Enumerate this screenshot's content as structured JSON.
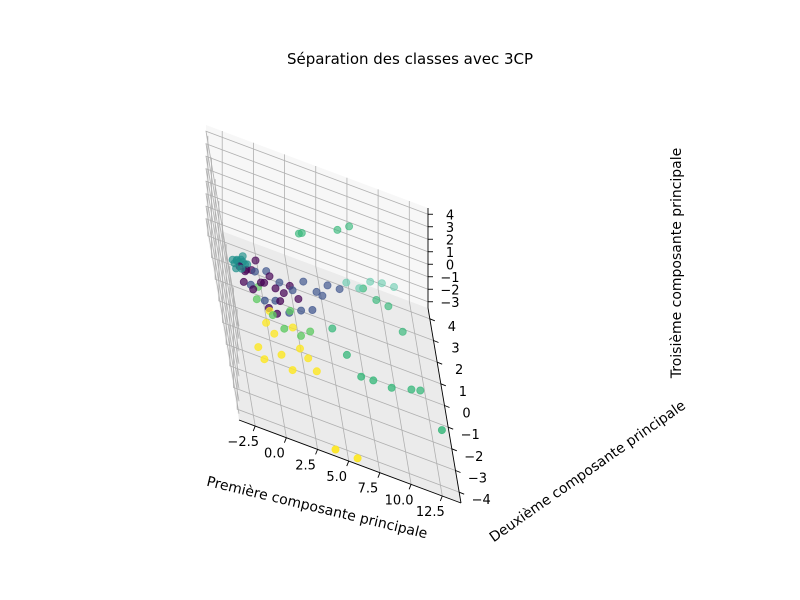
{
  "chart_data": {
    "type": "scatter",
    "projection": "3d",
    "title": "Séparation des classes avec 3CP",
    "xlabel": "Première composante principale",
    "ylabel": "Deuxième composante principale",
    "zlabel": "Troisième composante principale",
    "xlim": [
      -3.8,
      14.0
    ],
    "ylim": [
      -4.5,
      4.5
    ],
    "zlim": [
      -3.5,
      4.5
    ],
    "xticks": [
      -2.5,
      0.0,
      2.5,
      5.0,
      7.5,
      10.0,
      12.5
    ],
    "yticks": [
      -4,
      -3,
      -2,
      -1,
      0,
      1,
      2,
      3,
      4
    ],
    "zticks": [
      -3,
      -2,
      -1,
      0,
      1,
      2,
      3,
      4
    ],
    "xticklabels": [
      "−2.5",
      "0.0",
      "2.5",
      "5.0",
      "7.5",
      "10.0",
      "12.5"
    ],
    "yticklabels": [
      "−4",
      "−3",
      "−2",
      "−1",
      "0",
      "1",
      "2",
      "3",
      "4"
    ],
    "zticklabels": [
      "−3",
      "−2",
      "−1",
      "0",
      "1",
      "2",
      "3",
      "4"
    ],
    "grid": true,
    "legend": "none",
    "colormap": "viridis",
    "series": [
      {
        "color": "#440154",
        "points": [
          [
            -1.8,
            0.6,
            0.3
          ],
          [
            -1.2,
            0.9,
            0.1
          ],
          [
            -0.6,
            0.4,
            0.2
          ],
          [
            -2.0,
            0.3,
            -0.1
          ],
          [
            -1.4,
            -0.2,
            0.4
          ],
          [
            0.2,
            0.8,
            0.3
          ],
          [
            0.6,
            0.5,
            0.0
          ],
          [
            -0.8,
            1.2,
            0.5
          ],
          [
            1.2,
            0.3,
            0.2
          ],
          [
            -0.2,
            -0.4,
            -0.3
          ],
          [
            0.8,
            -0.1,
            0.1
          ],
          [
            -1.6,
            1.0,
            -0.2
          ],
          [
            1.8,
            0.7,
            0.3
          ],
          [
            -0.4,
            0.2,
            0.6
          ],
          [
            0.4,
            -0.6,
            -0.2
          ],
          [
            2.4,
            0.4,
            0.0
          ],
          [
            -2.2,
            0.8,
            0.2
          ]
        ]
      },
      {
        "color": "#3b528b",
        "points": [
          [
            -1.0,
            0.7,
            0.4
          ],
          [
            0.0,
            1.0,
            0.3
          ],
          [
            1.0,
            0.8,
            0.1
          ],
          [
            2.0,
            0.6,
            0.2
          ],
          [
            3.0,
            1.1,
            0.4
          ],
          [
            4.0,
            0.9,
            0.3
          ],
          [
            5.0,
            1.3,
            0.5
          ],
          [
            6.0,
            1.4,
            0.4
          ],
          [
            -0.5,
            -0.3,
            0.0
          ],
          [
            1.5,
            -0.2,
            -0.4
          ],
          [
            2.5,
            0.0,
            -0.2
          ],
          [
            3.5,
            0.3,
            -0.3
          ],
          [
            0.5,
            0.2,
            -0.5
          ],
          [
            -1.5,
            0.1,
            0.2
          ],
          [
            4.5,
            1.0,
            0.0
          ]
        ]
      },
      {
        "color": "#21918c",
        "points": [
          [
            -2.6,
            0.8,
            0.3
          ],
          [
            -2.4,
            0.9,
            0.4
          ],
          [
            -2.2,
            1.0,
            0.2
          ],
          [
            -2.0,
            1.1,
            0.3
          ],
          [
            -2.5,
            0.7,
            0.1
          ],
          [
            -1.9,
            0.9,
            0.5
          ],
          [
            -2.3,
            1.2,
            0.0
          ],
          [
            -1.7,
            1.0,
            0.2
          ],
          [
            -2.1,
            0.6,
            0.4
          ],
          [
            -1.5,
            1.1,
            0.1
          ],
          [
            -2.7,
            1.0,
            0.2
          ],
          [
            -1.8,
            1.3,
            0.3
          ]
        ]
      },
      {
        "color": "#5ec962",
        "points": [
          [
            -1.2,
            -0.5,
            0.2
          ],
          [
            0.0,
            -0.8,
            -0.1
          ],
          [
            1.5,
            -0.4,
            0.1
          ],
          [
            3.0,
            -0.8,
            -0.3
          ],
          [
            -0.8,
            0.5,
            -0.4
          ],
          [
            2.2,
            -1.0,
            -0.6
          ],
          [
            0.8,
            -1.2,
            -0.2
          ]
        ]
      },
      {
        "color": "#35b779",
        "points": [
          [
            3.0,
            1.5,
            3.6
          ],
          [
            2.8,
            1.6,
            3.3
          ],
          [
            6.0,
            2.0,
            4.1
          ],
          [
            7.0,
            2.2,
            4.4
          ],
          [
            8.0,
            1.8,
            0.5
          ],
          [
            9.0,
            1.6,
            0.3
          ],
          [
            10.0,
            1.7,
            0.0
          ],
          [
            11.0,
            1.2,
            -0.8
          ],
          [
            8.0,
            -1.0,
            -2.0
          ],
          [
            9.5,
            -0.9,
            -2.2
          ],
          [
            11.2,
            -0.5,
            -2.4
          ],
          [
            12.0,
            -0.2,
            -2.7
          ],
          [
            13.2,
            -2.0,
            -2.3
          ],
          [
            6.0,
            -0.6,
            -1.4
          ],
          [
            5.0,
            0.0,
            -0.7
          ],
          [
            7.0,
            -1.1,
            -1.9
          ]
        ]
      },
      {
        "color": "#6ccdb0",
        "points": [
          [
            7.6,
            1.5,
            0.9
          ],
          [
            8.6,
            1.9,
            1.1
          ],
          [
            9.6,
            2.1,
            1.0
          ],
          [
            10.6,
            2.2,
            0.9
          ],
          [
            6.6,
            1.6,
            0.8
          ]
        ]
      },
      {
        "color": "#fde725",
        "points": [
          [
            -0.6,
            -1.0,
            -0.6
          ],
          [
            0.4,
            -1.8,
            -1.4
          ],
          [
            1.2,
            -2.1,
            -1.8
          ],
          [
            2.0,
            -1.4,
            -1.0
          ],
          [
            2.6,
            -1.6,
            -1.2
          ],
          [
            3.2,
            -1.9,
            -1.5
          ],
          [
            -1.4,
            -1.6,
            -1.8
          ],
          [
            -1.0,
            -1.9,
            -2.1
          ],
          [
            0.0,
            -1.2,
            -0.9
          ],
          [
            4.0,
            -4.3,
            -3.3
          ],
          [
            5.8,
            -4.2,
            -3.5
          ],
          [
            1.6,
            -0.8,
            -0.5
          ],
          [
            -0.2,
            -0.6,
            -0.2
          ]
        ]
      }
    ]
  }
}
